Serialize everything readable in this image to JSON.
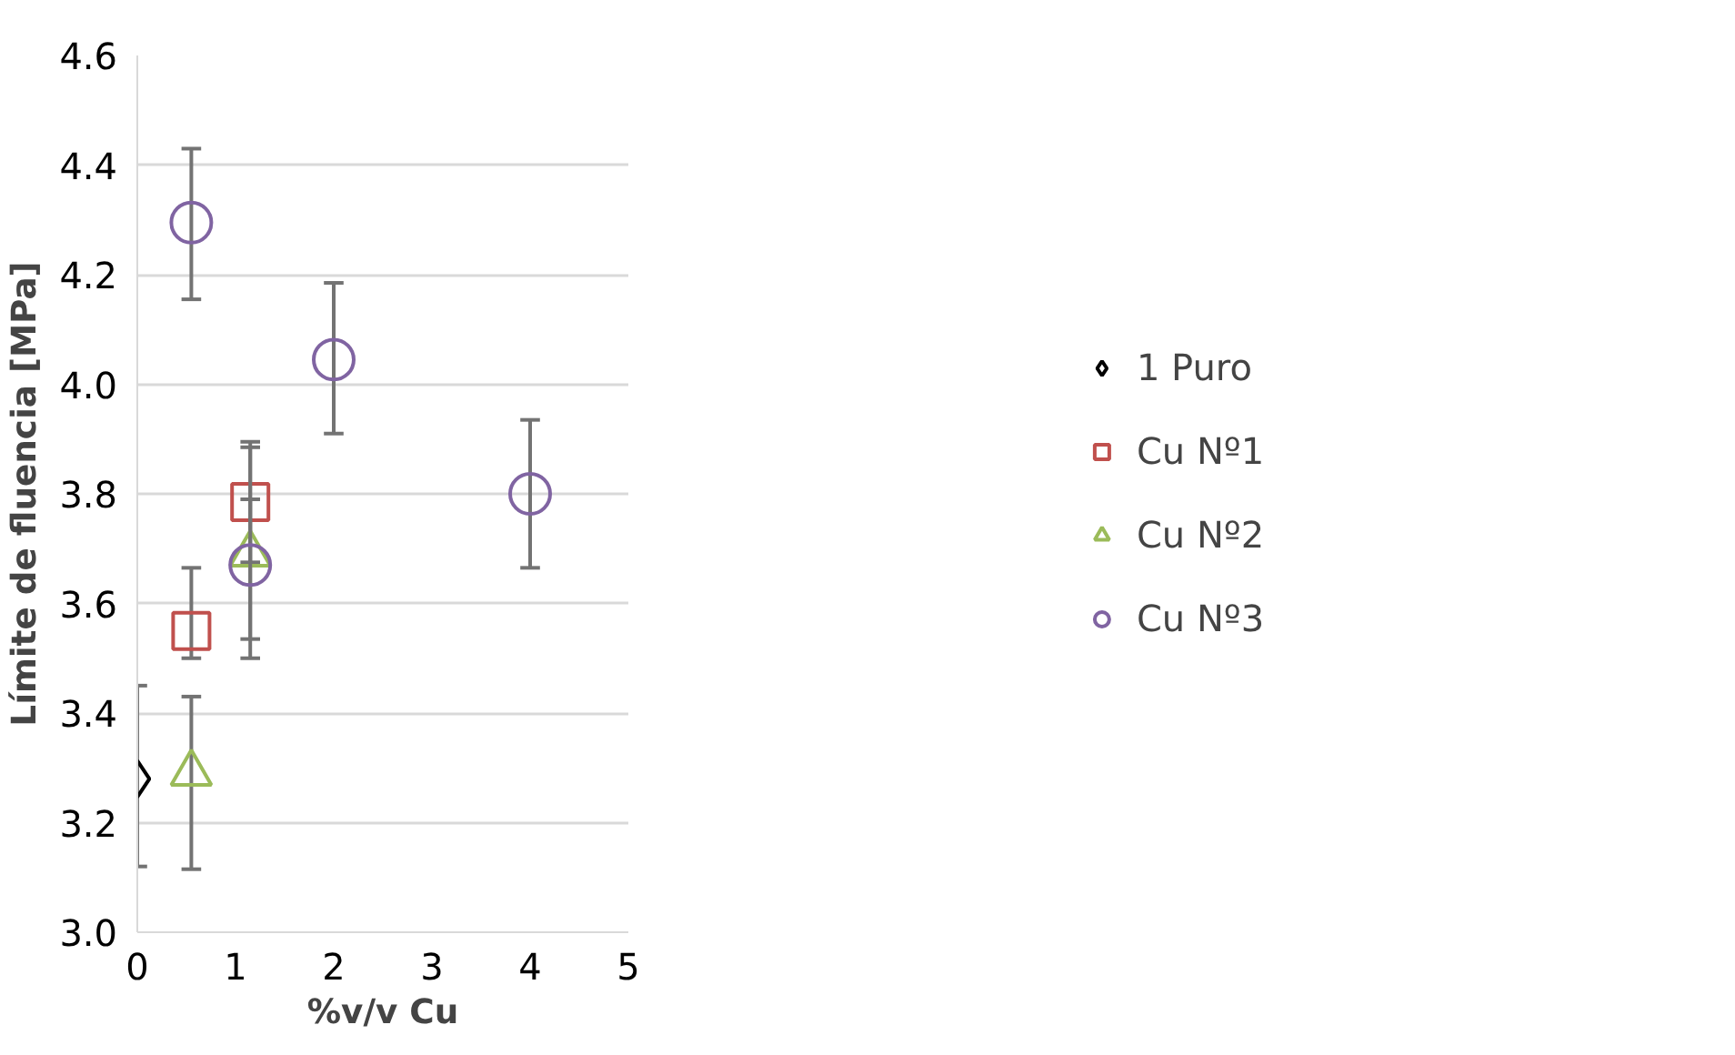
{
  "chart_data": {
    "type": "scatter",
    "xlabel": "%v/v Cu",
    "ylabel": "Límite de fluencia [MPa]",
    "xlim": [
      0,
      5
    ],
    "xticks": [
      0,
      1,
      2,
      3,
      4,
      5
    ],
    "ylim": [
      3.0,
      4.6
    ],
    "yticks": [
      {
        "value": 3.0,
        "label": "3.0"
      },
      {
        "value": 3.2,
        "label": "3.2"
      },
      {
        "value": 3.4,
        "label": "3.4"
      },
      {
        "value": 3.6,
        "label": "3.6"
      },
      {
        "value": 3.8,
        "label": "3.8"
      },
      {
        "value": 4.0,
        "label": "4.0"
      },
      {
        "value": 4.2,
        "label": "4.2"
      },
      {
        "value": 4.4,
        "label": "4.4"
      },
      {
        "value": 4.6,
        "label": "4.6"
      }
    ],
    "grid": "y",
    "legend": "right",
    "series": [
      {
        "name": "1 Puro",
        "color": "#000000",
        "marker": "diamond",
        "x": [
          0
        ],
        "values": [
          3.28
        ],
        "errors": [
          [
            3.12,
            3.45
          ]
        ]
      },
      {
        "name": "Cu Nº1",
        "color": "#c0504d",
        "marker": "square",
        "x": [
          0.55,
          1.15
        ],
        "values": [
          3.55,
          3.785
        ],
        "errors": [
          [
            3.5,
            3.665
          ],
          [
            3.675,
            3.895
          ]
        ]
      },
      {
        "name": "Cu Nº2",
        "color": "#9bbb59",
        "marker": "triangle",
        "x": [
          0.55,
          1.15
        ],
        "values": [
          3.29,
          3.69
        ],
        "errors": [
          [
            3.115,
            3.43
          ],
          [
            3.535,
            3.885
          ]
        ]
      },
      {
        "name": "Cu Nº3",
        "color": "#8064a2",
        "marker": "circle",
        "x": [
          0.55,
          1.15,
          2,
          4
        ],
        "values": [
          4.295,
          3.67,
          4.045,
          3.8
        ],
        "errors": [
          [
            4.155,
            4.43
          ],
          [
            3.5,
            3.79
          ],
          [
            3.91,
            4.185
          ],
          [
            3.665,
            3.935
          ]
        ]
      }
    ]
  }
}
